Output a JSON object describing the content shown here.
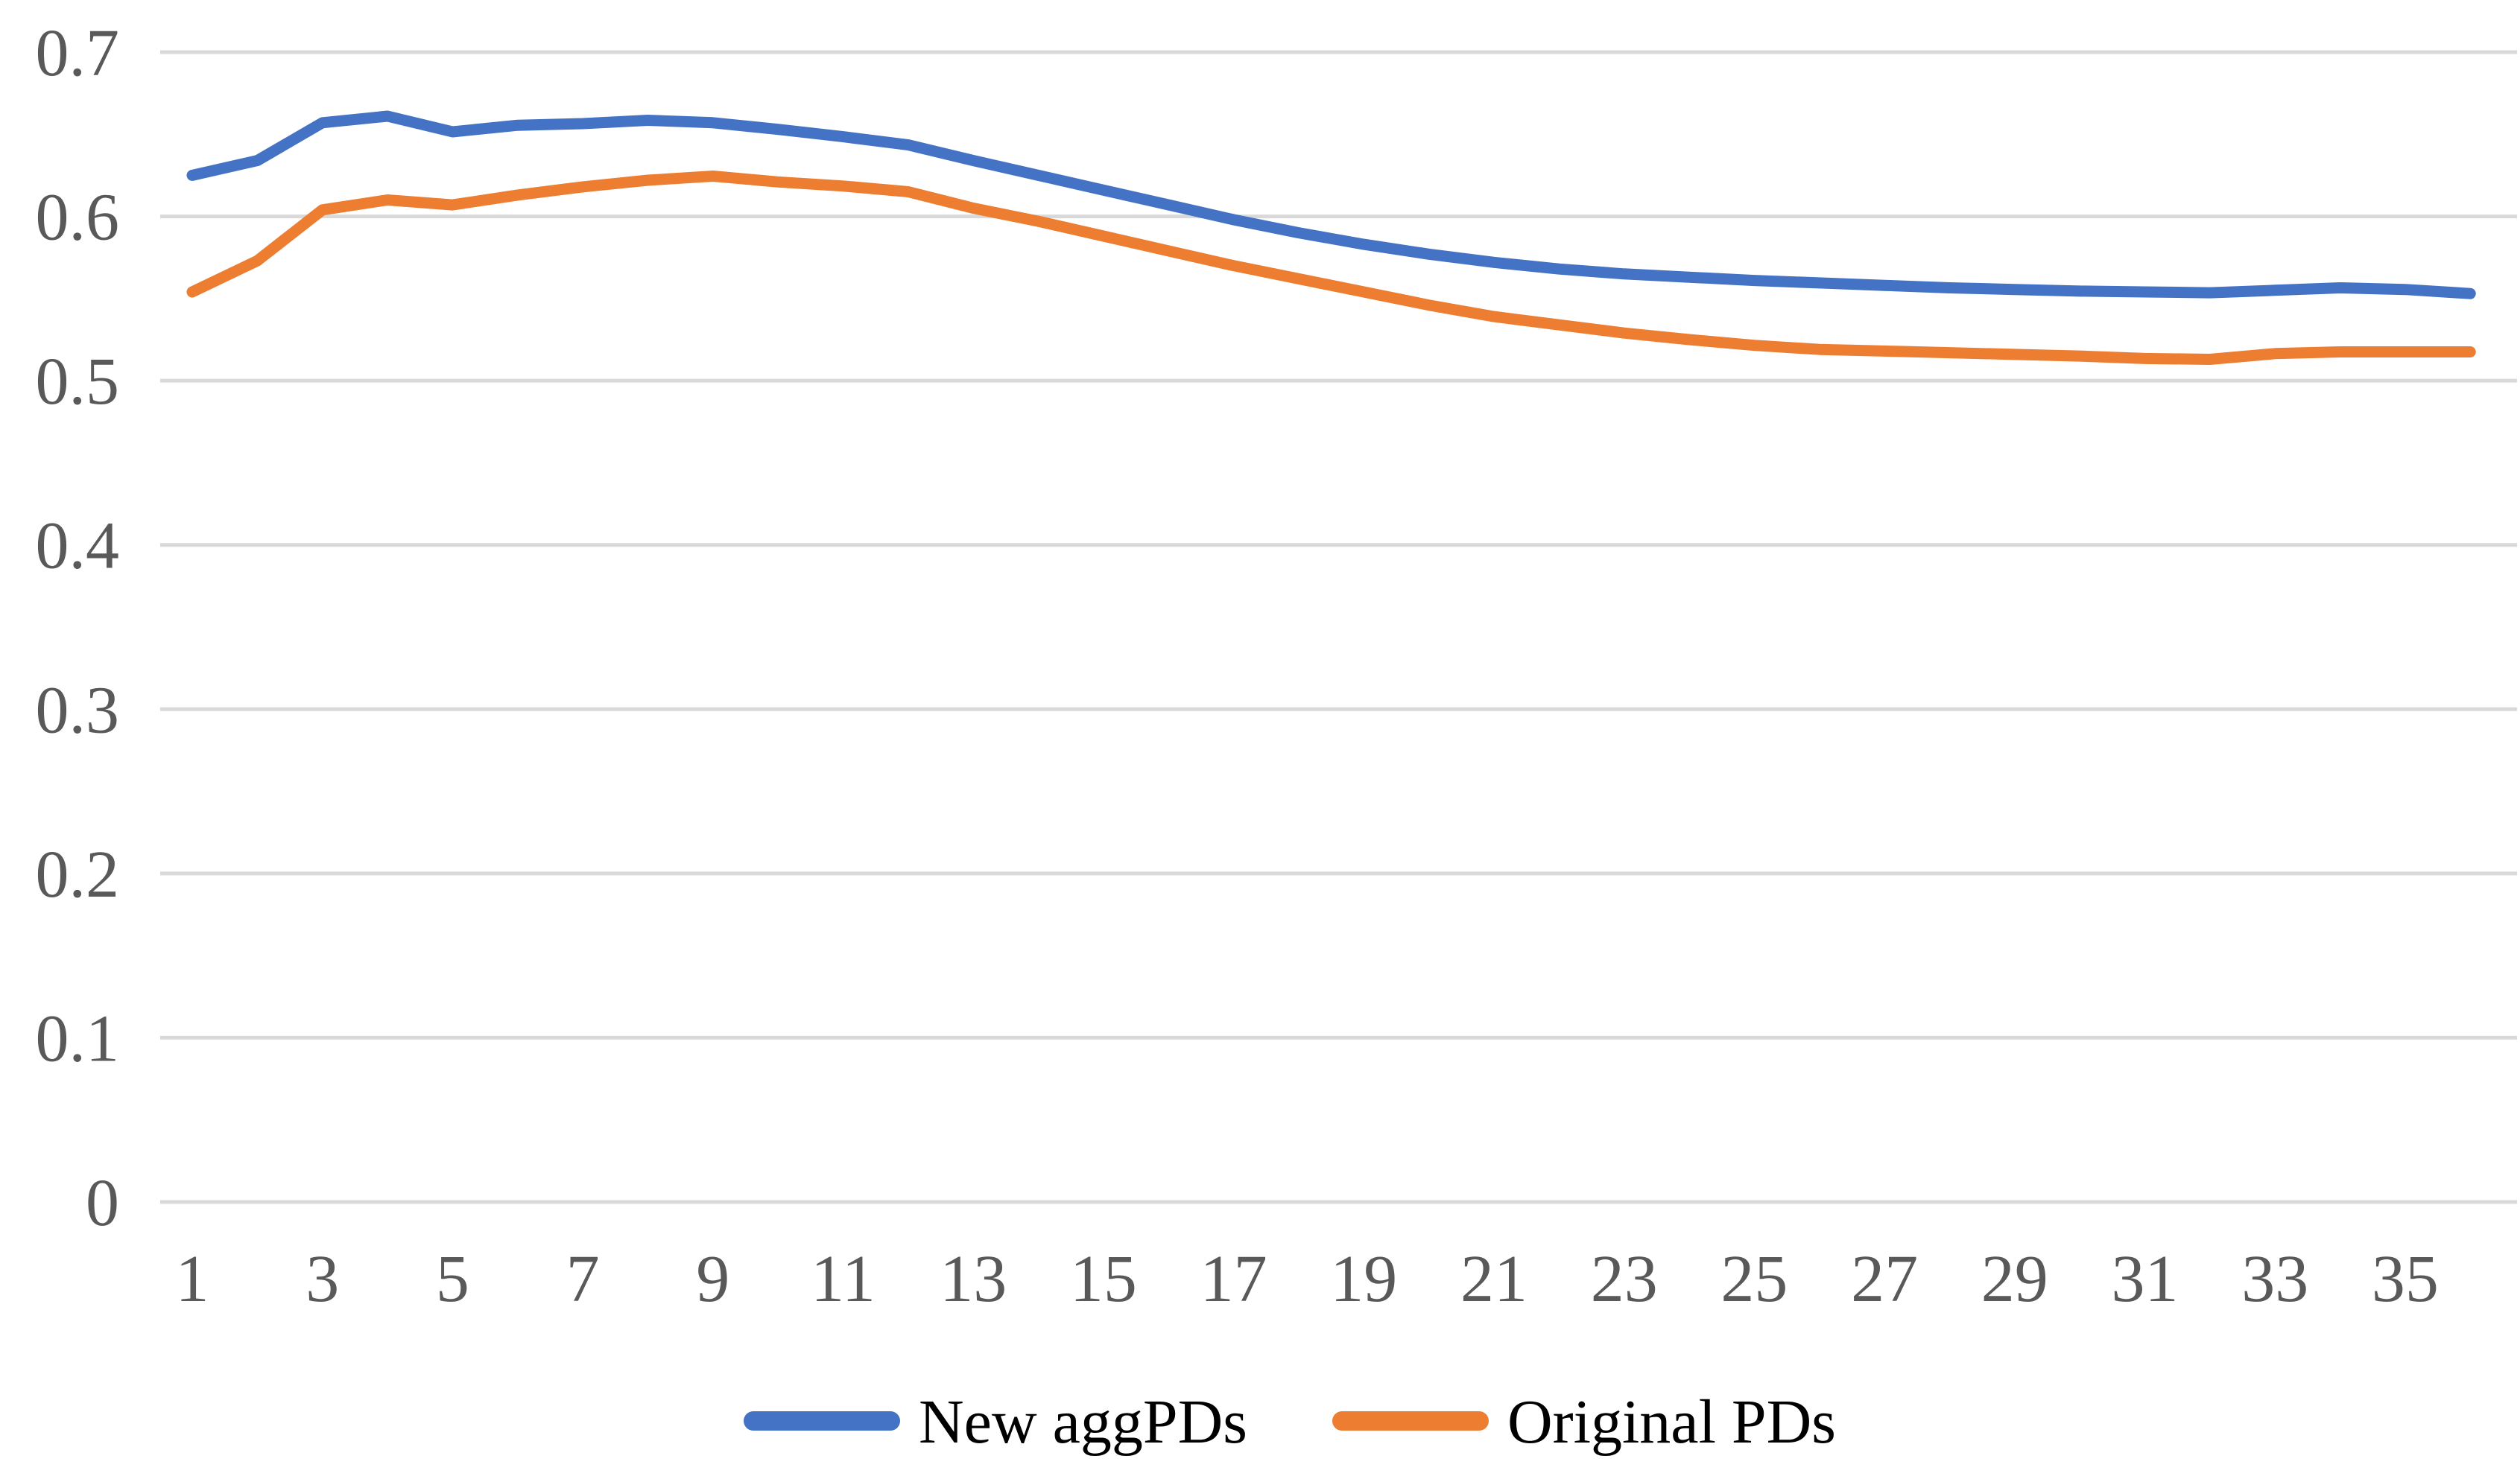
{
  "chart_data": {
    "type": "line",
    "title": "",
    "xlabel": "",
    "ylabel": "",
    "x": [
      1,
      2,
      3,
      4,
      5,
      6,
      7,
      8,
      9,
      10,
      11,
      12,
      13,
      14,
      15,
      16,
      17,
      18,
      19,
      20,
      21,
      22,
      23,
      24,
      25,
      26,
      27,
      28,
      29,
      30,
      31,
      32,
      33,
      34,
      35,
      36
    ],
    "series": [
      {
        "name": "New aggPDs",
        "color": "#4472C4",
        "values": [
          0.625,
          0.634,
          0.657,
          0.661,
          0.6515,
          0.6555,
          0.6565,
          0.6585,
          0.657,
          0.653,
          0.6485,
          0.6435,
          0.634,
          0.625,
          0.616,
          0.607,
          0.598,
          0.59,
          0.583,
          0.577,
          0.572,
          0.568,
          0.565,
          0.563,
          0.561,
          0.5595,
          0.558,
          0.5565,
          0.5555,
          0.5545,
          0.554,
          0.5535,
          0.555,
          0.5565,
          0.5555,
          0.553
        ]
      },
      {
        "name": "Original PDs",
        "color": "#ED7D31",
        "values": [
          0.554,
          0.573,
          0.604,
          0.61,
          0.607,
          0.613,
          0.618,
          0.622,
          0.6245,
          0.621,
          0.6185,
          0.615,
          0.605,
          0.597,
          0.588,
          0.579,
          0.57,
          0.562,
          0.554,
          0.546,
          0.539,
          0.534,
          0.529,
          0.525,
          0.5215,
          0.519,
          0.518,
          0.517,
          0.516,
          0.515,
          0.5135,
          0.513,
          0.5165,
          0.5175,
          0.5175,
          0.5175
        ]
      }
    ],
    "x_axis": {
      "tick_values": [
        1,
        3,
        5,
        7,
        9,
        11,
        13,
        15,
        17,
        19,
        21,
        23,
        25,
        27,
        29,
        31,
        33,
        35
      ],
      "tick_labels": [
        "1",
        "3",
        "5",
        "7",
        "9",
        "11",
        "13",
        "15",
        "17",
        "19",
        "21",
        "23",
        "25",
        "27",
        "29",
        "31",
        "33",
        "35"
      ]
    },
    "y_axis": {
      "min": 0,
      "max": 0.7,
      "tick_values": [
        0,
        0.1,
        0.2,
        0.3,
        0.4,
        0.5,
        0.6,
        0.7
      ],
      "tick_labels": [
        "0",
        "0.1",
        "0.2",
        "0.3",
        "0.4",
        "0.5",
        "0.6",
        "0.7"
      ]
    },
    "grid": "horizontal",
    "legend": {
      "position": "bottom",
      "entries": [
        "New aggPDs",
        "Original PDs"
      ]
    },
    "colors": {
      "gridline": "#D9D9D9",
      "tick_text": "#595959",
      "legend_text": "#000000",
      "background": "#FFFFFF"
    }
  }
}
